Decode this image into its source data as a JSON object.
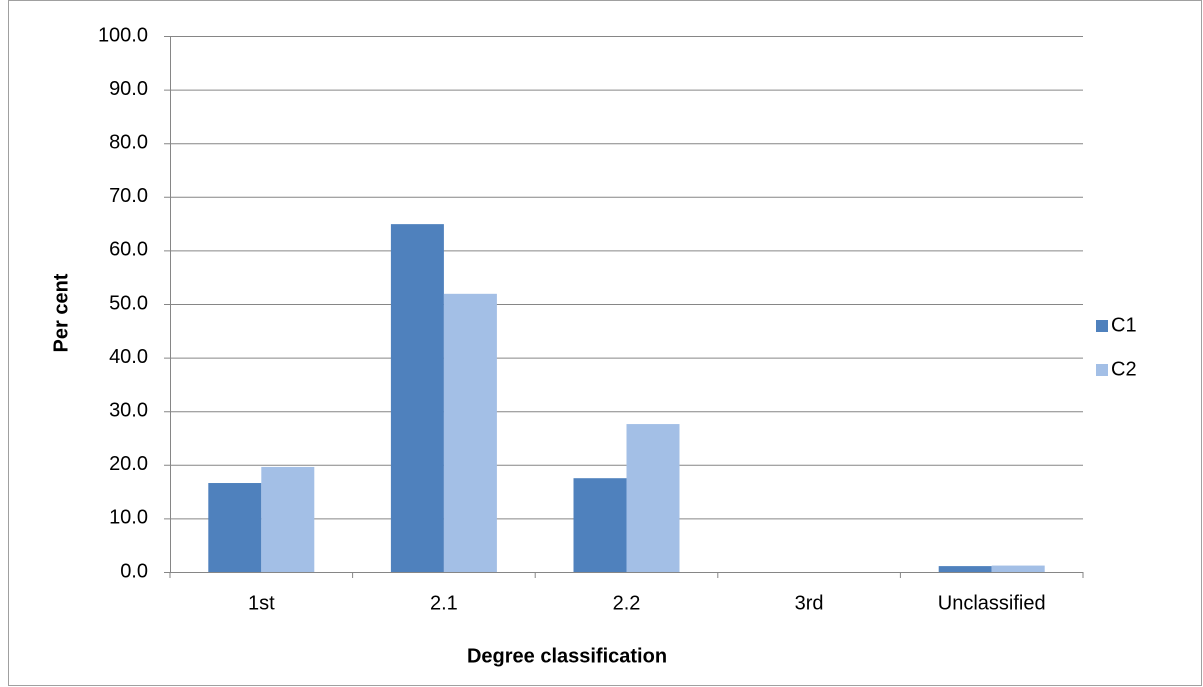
{
  "chart_data": {
    "type": "bar",
    "categories": [
      "1st",
      "2.1",
      "2.2",
      "3rd",
      "Unclassified"
    ],
    "series": [
      {
        "name": "C1",
        "color": "#4f81bd",
        "values": [
          16.6,
          64.9,
          17.5,
          0,
          1.1
        ]
      },
      {
        "name": "C2",
        "color": "#a3bfe6",
        "values": [
          19.6,
          51.9,
          27.6,
          0,
          1.2
        ]
      }
    ],
    "xlabel": "Degree classification",
    "ylabel": "Per cent",
    "ylim": [
      0,
      100
    ],
    "yticks": [
      {
        "value": 0,
        "label": "0.0"
      },
      {
        "value": 10,
        "label": "10.0"
      },
      {
        "value": 20,
        "label": "20.0"
      },
      {
        "value": 30,
        "label": "30.0"
      },
      {
        "value": 40,
        "label": "40.0"
      },
      {
        "value": 50,
        "label": "50.0"
      },
      {
        "value": 60,
        "label": "60.0"
      },
      {
        "value": 70,
        "label": "70.0"
      },
      {
        "value": 80,
        "label": "80.0"
      },
      {
        "value": 90,
        "label": "90.0"
      },
      {
        "value": 100,
        "label": "100.0"
      }
    ],
    "grid": true,
    "legend": "right"
  }
}
